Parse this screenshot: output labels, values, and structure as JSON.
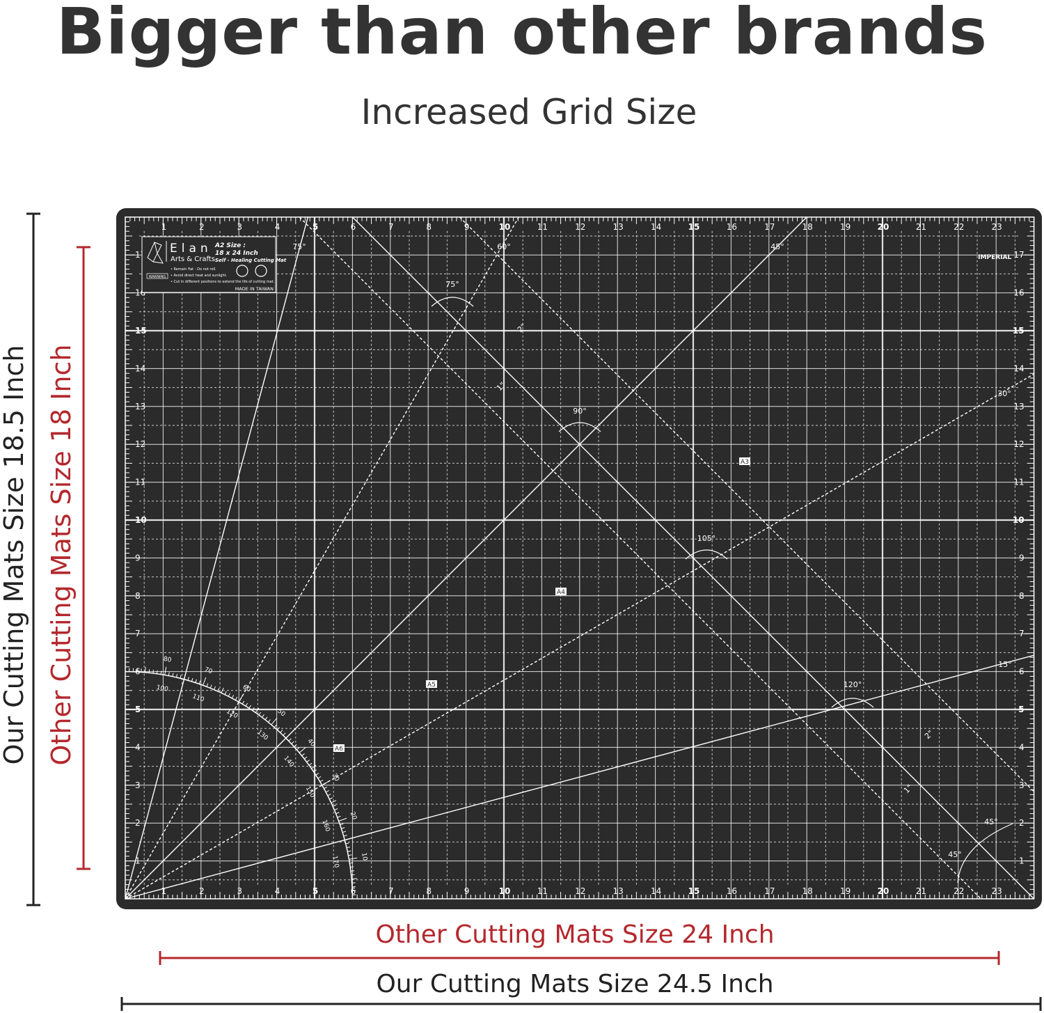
{
  "header": {
    "title": "Bigger than other brands",
    "subtitle": "Increased Grid Size"
  },
  "dimensions": {
    "our_height": "Our Cutting Mats Size 18.5 Inch",
    "other_height": "Other Cutting Mats Size 18 Inch",
    "other_width": "Other Cutting Mats Size 24 Inch",
    "our_width": "Our Cutting Mats Size 24.5 Inch"
  },
  "colors": {
    "text": "#333333",
    "red": "#b3282d",
    "mat": "#2b2b2b",
    "grid": "#ffffff"
  },
  "mat": {
    "logo": {
      "brand": "Elan",
      "sub": "Arts & Crafts",
      "size_label": "A2 Size :",
      "size": "18 x 24 Inch",
      "product": "Self - Healing Cutting Mat",
      "warning": "WARNING",
      "tips": [
        "Remain flat - Do not roll.",
        "Avoid direct heat and sunlight.",
        "Cut in different positions to extend the life of cutting mat."
      ],
      "origin": "MADE IN TAIWAN"
    },
    "unit_label": "IMPERIAL",
    "ruler_x_max": 23,
    "ruler_y_max": 17,
    "angle_labels": [
      "75°",
      "60°",
      "45°",
      "30°",
      "15°",
      "75°",
      "90°",
      "105°",
      "120°",
      "45°",
      "45°"
    ],
    "offset_labels": [
      "2\"",
      "1\"",
      "2\"",
      "1\""
    ],
    "paper_sizes": [
      "A3",
      "A4",
      "A5",
      "A6"
    ],
    "protractor_outer": [
      "80",
      "70",
      "60",
      "50",
      "40",
      "30",
      "20",
      "10"
    ],
    "protractor_inner": [
      "100",
      "110",
      "120",
      "130",
      "140",
      "150",
      "160",
      "170"
    ]
  }
}
